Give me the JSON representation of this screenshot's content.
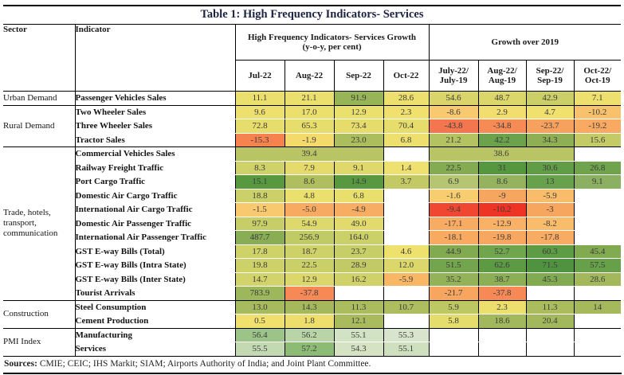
{
  "title": "Table 1: High Frequency Indicators- Services",
  "header": {
    "sector": "Sector",
    "indicator": "Indicator",
    "group1": "High Frequency Indicators- Services Growth\n(y-o-y, per cent)",
    "group2": "Growth over 2019",
    "months": [
      "Jul-22",
      "Aug-22",
      "Sep-22",
      "Oct-22",
      "July-22/\nJuly-19",
      "Aug-22/\nAug-19",
      "Sep-22/\nSep-19",
      "Oct-22/\nOct-19"
    ]
  },
  "sections": [
    {
      "sector": "Urban Demand",
      "rows": [
        {
          "indicator": "Passenger Vehicles Sales",
          "cells": [
            {
              "v": "11.1",
              "c": "#EBDF6E"
            },
            {
              "v": "21.1",
              "c": "#EBDF6E"
            },
            {
              "v": "91.9",
              "c": "#97B457"
            },
            {
              "v": "28.6",
              "c": "#EDE06E"
            },
            {
              "v": "54.6",
              "c": "#DAD56B"
            },
            {
              "v": "48.7",
              "c": "#DCD76B"
            },
            {
              "v": "42.9",
              "c": "#CCCF68"
            },
            {
              "v": "7.1",
              "c": "#EDE06E"
            }
          ]
        }
      ]
    },
    {
      "sector": "Rural Demand",
      "rows": [
        {
          "indicator": "Two Wheeler Sales",
          "cells": [
            {
              "v": "9.6",
              "c": "#EDE06E"
            },
            {
              "v": "17.0",
              "c": "#EBDF6D"
            },
            {
              "v": "12.9",
              "c": "#EAE06D"
            },
            {
              "v": "2.3",
              "c": "#F0E16F"
            },
            {
              "v": "-8.6",
              "c": "#F9C96F"
            },
            {
              "v": "2.9",
              "c": "#F2DE6E"
            },
            {
              "v": "4.7",
              "c": "#F0E06E"
            },
            {
              "v": "-10.2",
              "c": "#F8C16C"
            }
          ]
        },
        {
          "indicator": "Three Wheeler Sales",
          "cells": [
            {
              "v": "72.8",
              "c": "#E7DD6C"
            },
            {
              "v": "65.3",
              "c": "#E7DD6C"
            },
            {
              "v": "73.4",
              "c": "#E6DC6C"
            },
            {
              "v": "70.4",
              "c": "#E7DD6C"
            },
            {
              "v": "-43.8",
              "c": "#F4764E"
            },
            {
              "v": "-34.8",
              "c": "#F68B55"
            },
            {
              "v": "-23.7",
              "c": "#F7A15E"
            },
            {
              "v": "-19.2",
              "c": "#F8A962"
            }
          ]
        },
        {
          "indicator": "Tractor Sales",
          "cells": [
            {
              "v": "-15.3",
              "c": "#F6824F"
            },
            {
              "v": "-1.9",
              "c": "#F4D96B"
            },
            {
              "v": "23.0",
              "c": "#ACBD5D"
            },
            {
              "v": "6.8",
              "c": "#EDE06E"
            },
            {
              "v": "21.2",
              "c": "#B5C262"
            },
            {
              "v": "42.2",
              "c": "#6BA24B"
            },
            {
              "v": "34.3",
              "c": "#8FAF55"
            },
            {
              "v": "15.6",
              "c": "#C4CA65"
            }
          ]
        }
      ]
    },
    {
      "sector": "Trade, hotels, transport, communication",
      "rows": [
        {
          "indicator": "Commercial Vehicles Sales",
          "cells": [
            {
              "v": "39.4",
              "c": "#B9C464",
              "span": 3
            },
            null,
            {
              "v": "38.6",
              "c": "#B9C464",
              "span": 3
            },
            null
          ]
        },
        {
          "indicator": "Railway Freight Traffic",
          "cells": [
            {
              "v": "8.3",
              "c": "#CFD169"
            },
            {
              "v": "7.9",
              "c": "#E4DB6C"
            },
            {
              "v": "9.1",
              "c": "#DFD96C"
            },
            {
              "v": "1.4",
              "c": "#EEE16F"
            },
            {
              "v": "22.5",
              "c": "#84AB52"
            },
            {
              "v": "31",
              "c": "#55973F"
            },
            {
              "v": "30.6",
              "c": "#619D46"
            },
            {
              "v": "26.8",
              "c": "#6FA44D"
            }
          ]
        },
        {
          "indicator": "Port Cargo Traffic",
          "cells": [
            {
              "v": "15.1",
              "c": "#58993F"
            },
            {
              "v": "8.6",
              "c": "#AFBE5E"
            },
            {
              "v": "14.9",
              "c": "#58993F"
            },
            {
              "v": "3.7",
              "c": "#C2C965"
            },
            {
              "v": "6.9",
              "c": "#B5C572"
            },
            {
              "v": "8.6",
              "c": "#95B35E"
            },
            {
              "v": "13",
              "c": "#68A14B"
            },
            {
              "v": "9.1",
              "c": "#8CB061"
            }
          ]
        },
        {
          "indicator": "Domestic Air Cargo Traffic",
          "cells": [
            {
              "v": "18.8",
              "c": "#CCD069"
            },
            {
              "v": "4.8",
              "c": "#EBE06D"
            },
            {
              "v": "6.8",
              "c": "#E9DF6D"
            },
            null,
            {
              "v": "-1.6",
              "c": "#F8CD70"
            },
            {
              "v": "-9",
              "c": "#F7A660"
            },
            {
              "v": "-5.9",
              "c": "#F8BC6A"
            },
            null
          ]
        },
        {
          "indicator": "International Air Cargo Traffic",
          "cells": [
            {
              "v": "-1.5",
              "c": "#F9C96F"
            },
            {
              "v": "-5.0",
              "c": "#F7AA62"
            },
            {
              "v": "-4.9",
              "c": "#F7AD63"
            },
            null,
            {
              "v": "-9.4",
              "c": "#F04732"
            },
            {
              "v": "-10.2",
              "c": "#EE3425"
            },
            {
              "v": "-3",
              "c": "#F7A660"
            },
            null
          ]
        },
        {
          "indicator": "Domestic Air Passenger Traffic",
          "cells": [
            {
              "v": "97.9",
              "c": "#C8CE67"
            },
            {
              "v": "54.9",
              "c": "#DED96C"
            },
            {
              "v": "49.0",
              "c": "#E2DA6C"
            },
            null,
            {
              "v": "-17.1",
              "c": "#F8AB62"
            },
            {
              "v": "-12.9",
              "c": "#F8B166"
            },
            {
              "v": "-8.2",
              "c": "#F8BC6A"
            },
            null
          ]
        },
        {
          "indicator": "International Air Passenger Traffic",
          "cells": [
            {
              "v": "487.7",
              "c": "#88AD54"
            },
            {
              "v": "256.9",
              "c": "#C1CB66"
            },
            {
              "v": "164.0",
              "c": "#CBD068"
            },
            null,
            {
              "v": "-18.1",
              "c": "#F8AA61"
            },
            {
              "v": "-19.8",
              "c": "#F8A760"
            },
            {
              "v": "-17.8",
              "c": "#F8AB62"
            },
            null
          ]
        },
        {
          "indicator": "GST E-way Bills (Total)",
          "cells": [
            {
              "v": "17.8",
              "c": "#CFD269"
            },
            {
              "v": "18.7",
              "c": "#CDD168"
            },
            {
              "v": "23.7",
              "c": "#C8CE67"
            },
            {
              "v": "4.6",
              "c": "#EFE16E"
            },
            {
              "v": "44.9",
              "c": "#82AA51"
            },
            {
              "v": "52.7",
              "c": "#70A44D"
            },
            {
              "v": "60.3",
              "c": "#5E9B45"
            },
            {
              "v": "45.4",
              "c": "#81AA51"
            }
          ]
        },
        {
          "indicator": "GST E-way Bills (Intra State)",
          "cells": [
            {
              "v": "19.8",
              "c": "#CDD168"
            },
            {
              "v": "22.5",
              "c": "#CACF68"
            },
            {
              "v": "28.9",
              "c": "#C2CA65"
            },
            {
              "v": "12.0",
              "c": "#DCD76B"
            },
            {
              "v": "51.5",
              "c": "#73A54E"
            },
            {
              "v": "62.6",
              "c": "#5C9A44"
            },
            {
              "v": "71.5",
              "c": "#4F9340"
            },
            {
              "v": "57.5",
              "c": "#66A049"
            }
          ]
        },
        {
          "indicator": "GST E-way Bills (Inter State)",
          "cells": [
            {
              "v": "14.7",
              "c": "#D2D36A"
            },
            {
              "v": "12.9",
              "c": "#DCD76B"
            },
            {
              "v": "16.2",
              "c": "#D0D269"
            },
            {
              "v": "-5.9",
              "c": "#F8B765"
            },
            {
              "v": "35.2",
              "c": "#94B257"
            },
            {
              "v": "38.7",
              "c": "#8CAE54"
            },
            {
              "v": "45.3",
              "c": "#81AA51"
            },
            {
              "v": "28.6",
              "c": "#A2B85B"
            }
          ]
        },
        {
          "indicator": "Tourist Arrivals",
          "cells": [
            {
              "v": "783.9",
              "c": "#9CB75C"
            },
            {
              "v": "-37.8",
              "c": "#F68955"
            },
            null,
            null,
            {
              "v": "-21.7",
              "c": "#F8A55F"
            },
            {
              "v": "-37.8",
              "c": "#F68955"
            },
            null,
            null
          ]
        }
      ]
    },
    {
      "sector": "Construction",
      "rows": [
        {
          "indicator": "Steel Consumption",
          "cells": [
            {
              "v": "13.0",
              "c": "#A7BA5D"
            },
            {
              "v": "14.3",
              "c": "#A5B95C"
            },
            {
              "v": "11.3",
              "c": "#ABBC5E"
            },
            {
              "v": "10.7",
              "c": "#ADBD5F"
            },
            {
              "v": "5.9",
              "c": "#BDC863"
            },
            {
              "v": "2.3",
              "c": "#ECDF6D"
            },
            {
              "v": "11.3",
              "c": "#ABBC5E"
            },
            {
              "v": "14",
              "c": "#A5B95C"
            }
          ]
        },
        {
          "indicator": "Cement Production",
          "cells": [
            {
              "v": "0.5",
              "c": "#F0E06E"
            },
            {
              "v": "1.8",
              "c": "#EEDF6D"
            },
            {
              "v": "12.1",
              "c": "#AABB5E"
            },
            null,
            {
              "v": "5.8",
              "c": "#E4DC6C"
            },
            {
              "v": "18.6",
              "c": "#A3B85C"
            },
            {
              "v": "20.4",
              "c": "#A3B85C"
            },
            null
          ]
        }
      ]
    },
    {
      "sector": "PMI Index",
      "rows": [
        {
          "indicator": "Manufacturing",
          "cells": [
            {
              "v": "56.4",
              "c": "#9CC489"
            },
            {
              "v": "56.2",
              "c": "#B9D4A6"
            },
            {
              "v": "55.1",
              "c": "#D2E2C4"
            },
            {
              "v": "55.3",
              "c": "#D8E5CC"
            },
            null,
            null,
            null,
            null
          ]
        },
        {
          "indicator": "Services",
          "cells": [
            {
              "v": "55.5",
              "c": "#C2D9B2"
            },
            {
              "v": "57.2",
              "c": "#8CBB76"
            },
            {
              "v": "54.3",
              "c": "#D6E3C3"
            },
            {
              "v": "55.1",
              "c": "#CEE0BE"
            },
            null,
            null,
            null,
            null
          ]
        }
      ]
    }
  ],
  "sources": {
    "label": "Sources:",
    "text": " CMIE; CEIC; IHS Markit; SIAM; Airports Authority of India; and Joint Plant Committee."
  }
}
